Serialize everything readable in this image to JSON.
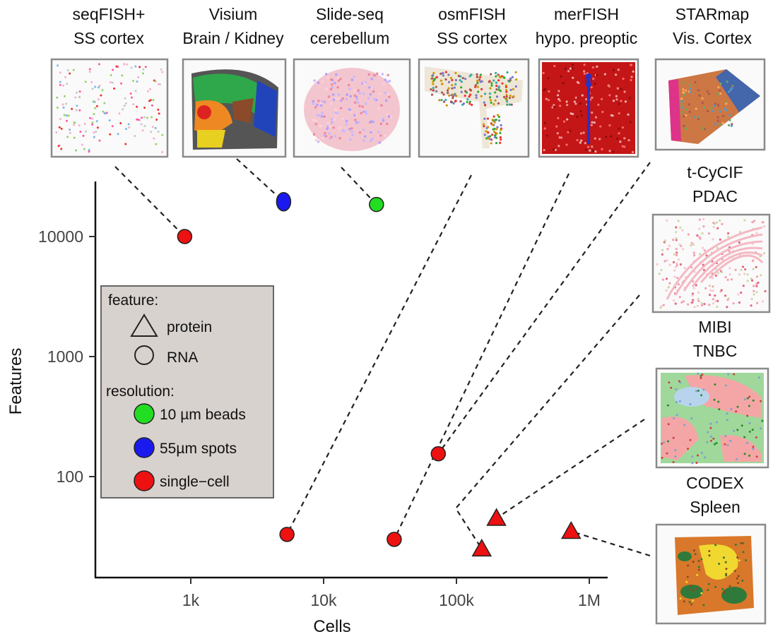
{
  "chart_data": {
    "type": "scatter",
    "xlabel": "Cells",
    "ylabel": "Features",
    "x_scale": "log",
    "y_scale": "log",
    "x_ticks": [
      {
        "value": 1000,
        "label": "1k"
      },
      {
        "value": 10000,
        "label": "10k"
      },
      {
        "value": 100000,
        "label": "100k"
      },
      {
        "value": 1000000,
        "label": "1M"
      }
    ],
    "y_ticks": [
      {
        "value": 100,
        "label": "100"
      },
      {
        "value": 1000,
        "label": "1000"
      },
      {
        "value": 10000,
        "label": "10000"
      }
    ],
    "grid": false,
    "legend": {
      "placement": "inside-left",
      "feature_title": "feature:",
      "feature_items": [
        {
          "label": "protein",
          "shape": "triangle"
        },
        {
          "label": "RNA",
          "shape": "circle"
        }
      ],
      "resolution_title": "resolution:",
      "resolution_items": [
        {
          "label": "10 µm beads",
          "color": "#22dd22"
        },
        {
          "label": "55µm spots",
          "color": "#1a1aee"
        },
        {
          "label": "single−cell",
          "color": "#ee1111"
        }
      ]
    },
    "points": [
      {
        "dataset": "seqFISH+ SS cortex",
        "cells": 900,
        "features": 10000,
        "feature": "RNA",
        "resolution": "single-cell"
      },
      {
        "dataset": "Visium Brain / Kidney",
        "cells": 5000,
        "features": 19500,
        "feature": "RNA",
        "resolution": "55µm spots"
      },
      {
        "dataset": "Slide-seq cerebellum",
        "cells": 25000,
        "features": 18500,
        "feature": "RNA",
        "resolution": "10 µm beads"
      },
      {
        "dataset": "osmFISH SS cortex",
        "cells": 5300,
        "features": 33,
        "feature": "RNA",
        "resolution": "single-cell"
      },
      {
        "dataset": "merFISH hypo. preoptic",
        "cells": 34000,
        "features": 30,
        "feature": "RNA",
        "resolution": "single-cell"
      },
      {
        "dataset": "STARmap Vis. Cortex",
        "cells": 73000,
        "features": 155,
        "feature": "RNA",
        "resolution": "single-cell"
      },
      {
        "dataset": "t-CyCIF PDAC",
        "cells": 155000,
        "features": 25,
        "feature": "protein",
        "resolution": "single-cell"
      },
      {
        "dataset": "MIBI TNBC",
        "cells": 200000,
        "features": 45,
        "feature": "protein",
        "resolution": "single-cell"
      },
      {
        "dataset": "CODEX Spleen",
        "cells": 730000,
        "features": 35,
        "feature": "protein",
        "resolution": "single-cell"
      }
    ]
  },
  "thumbnails": [
    {
      "line1": "seqFISH+",
      "line2": "SS cortex",
      "style": "seqfish"
    },
    {
      "line1": "Visium",
      "line2": "Brain / Kidney",
      "style": "visium"
    },
    {
      "line1": "Slide-seq",
      "line2": "cerebellum",
      "style": "slideseq"
    },
    {
      "line1": "osmFISH",
      "line2": "SS cortex",
      "style": "osmfish"
    },
    {
      "line1": "merFISH",
      "line2": "hypo. preoptic",
      "style": "merfish"
    },
    {
      "line1": "STARmap",
      "line2": "Vis. Cortex",
      "style": "starmap"
    },
    {
      "line1": "t-CyCIF",
      "line2": "PDAC",
      "style": "cycif"
    },
    {
      "line1": "MIBI",
      "line2": "TNBC",
      "style": "mibi"
    },
    {
      "line1": "CODEX",
      "line2": "Spleen",
      "style": "codex"
    }
  ]
}
